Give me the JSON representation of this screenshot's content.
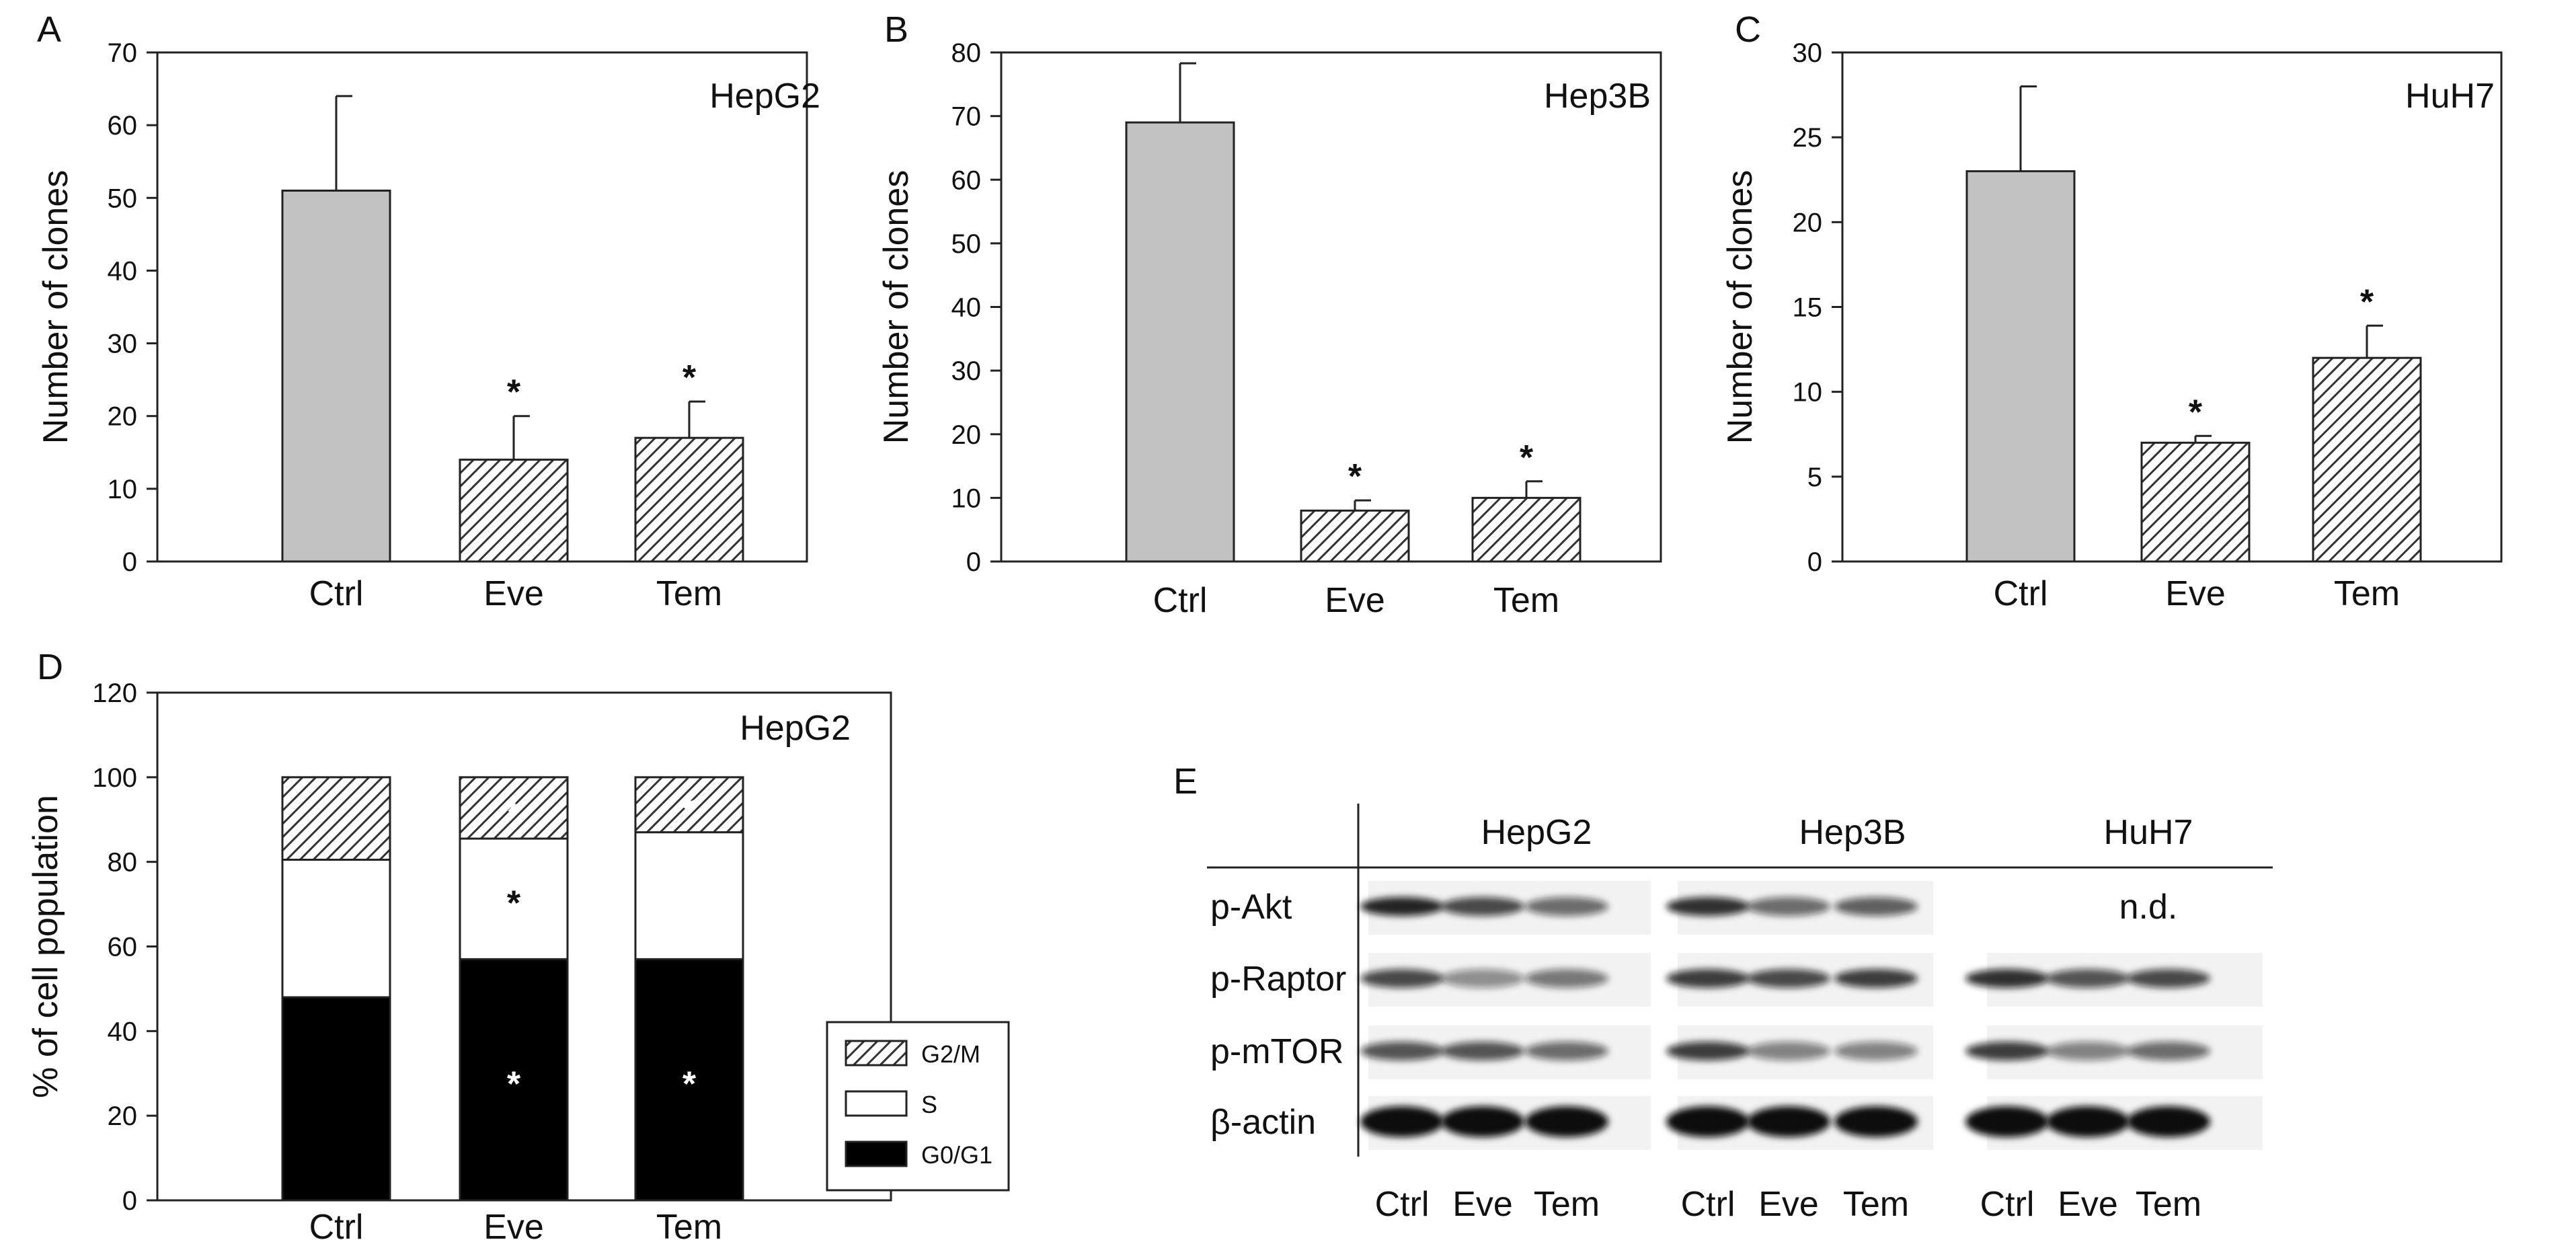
{
  "chart_data": [
    {
      "type": "bar",
      "panel": "A",
      "cell_line": "HepG2",
      "ylabel": "Number of clones",
      "categories": [
        "Ctrl",
        "Eve",
        "Tem"
      ],
      "values": [
        51,
        14,
        17
      ],
      "errors": [
        13,
        6,
        5
      ],
      "significant": [
        false,
        true,
        true
      ],
      "ylim": [
        0,
        70
      ],
      "yticks": [
        0,
        10,
        20,
        30,
        40,
        50,
        60,
        70
      ],
      "bar_fills": [
        "solid-gray",
        "hatched",
        "hatched"
      ]
    },
    {
      "type": "bar",
      "panel": "B",
      "cell_line": "Hep3B",
      "ylabel": "Number of clones",
      "categories": [
        "Ctrl",
        "Eve",
        "Tem"
      ],
      "values": [
        69,
        8,
        10
      ],
      "errors": [
        9.3,
        1.6,
        2.6
      ],
      "significant": [
        false,
        true,
        true
      ],
      "ylim": [
        0,
        80
      ],
      "yticks": [
        0,
        10,
        20,
        30,
        40,
        50,
        60,
        70,
        80
      ],
      "bar_fills": [
        "solid-gray",
        "hatched",
        "hatched"
      ]
    },
    {
      "type": "bar",
      "panel": "C",
      "cell_line": "HuH7",
      "ylabel": "Number of clones",
      "categories": [
        "Ctrl",
        "Eve",
        "Tem"
      ],
      "values": [
        23,
        7,
        12
      ],
      "errors": [
        5,
        0.4,
        1.9
      ],
      "significant": [
        false,
        true,
        true
      ],
      "ylim": [
        0,
        30
      ],
      "yticks": [
        0,
        5,
        10,
        15,
        20,
        25,
        30
      ],
      "bar_fills": [
        "solid-gray",
        "hatched",
        "hatched"
      ]
    },
    {
      "type": "bar",
      "stacked": true,
      "panel": "D",
      "cell_line": "HepG2",
      "ylabel": "% of cell population",
      "categories": [
        "Ctrl",
        "Eve",
        "Tem"
      ],
      "series": [
        {
          "name": "G0/G1",
          "values": [
            48,
            57,
            57
          ],
          "fill": "black",
          "significant": [
            false,
            true,
            true
          ]
        },
        {
          "name": "S",
          "values": [
            32.5,
            28.5,
            30
          ],
          "fill": "white",
          "significant": [
            false,
            true,
            false
          ]
        },
        {
          "name": "G2/M",
          "values": [
            19.5,
            14.5,
            13
          ],
          "fill": "hatched",
          "significant": [
            false,
            true,
            true
          ]
        }
      ],
      "legend_order": [
        "G2/M",
        "S",
        "G0/G1"
      ],
      "legend_position": "right",
      "ylim": [
        0,
        120
      ],
      "yticks": [
        0,
        20,
        40,
        60,
        80,
        100,
        120
      ]
    }
  ],
  "significance_mark": "*",
  "colors": {
    "solid_bar": "#c2c2c2",
    "hatch": "#333333",
    "axis": "#222222",
    "stack_black": "#000000"
  },
  "panel_e": {
    "letter": "E",
    "groups": [
      {
        "name": "HepG2"
      },
      {
        "name": "Hep3B"
      },
      {
        "name": "HuH7"
      }
    ],
    "rows": [
      "p-Akt",
      "p-Raptor",
      "p-mTOR",
      "β-actin"
    ],
    "lanes": [
      "Ctrl",
      "Eve",
      "Tem"
    ],
    "not_detected_text": "n.d."
  }
}
